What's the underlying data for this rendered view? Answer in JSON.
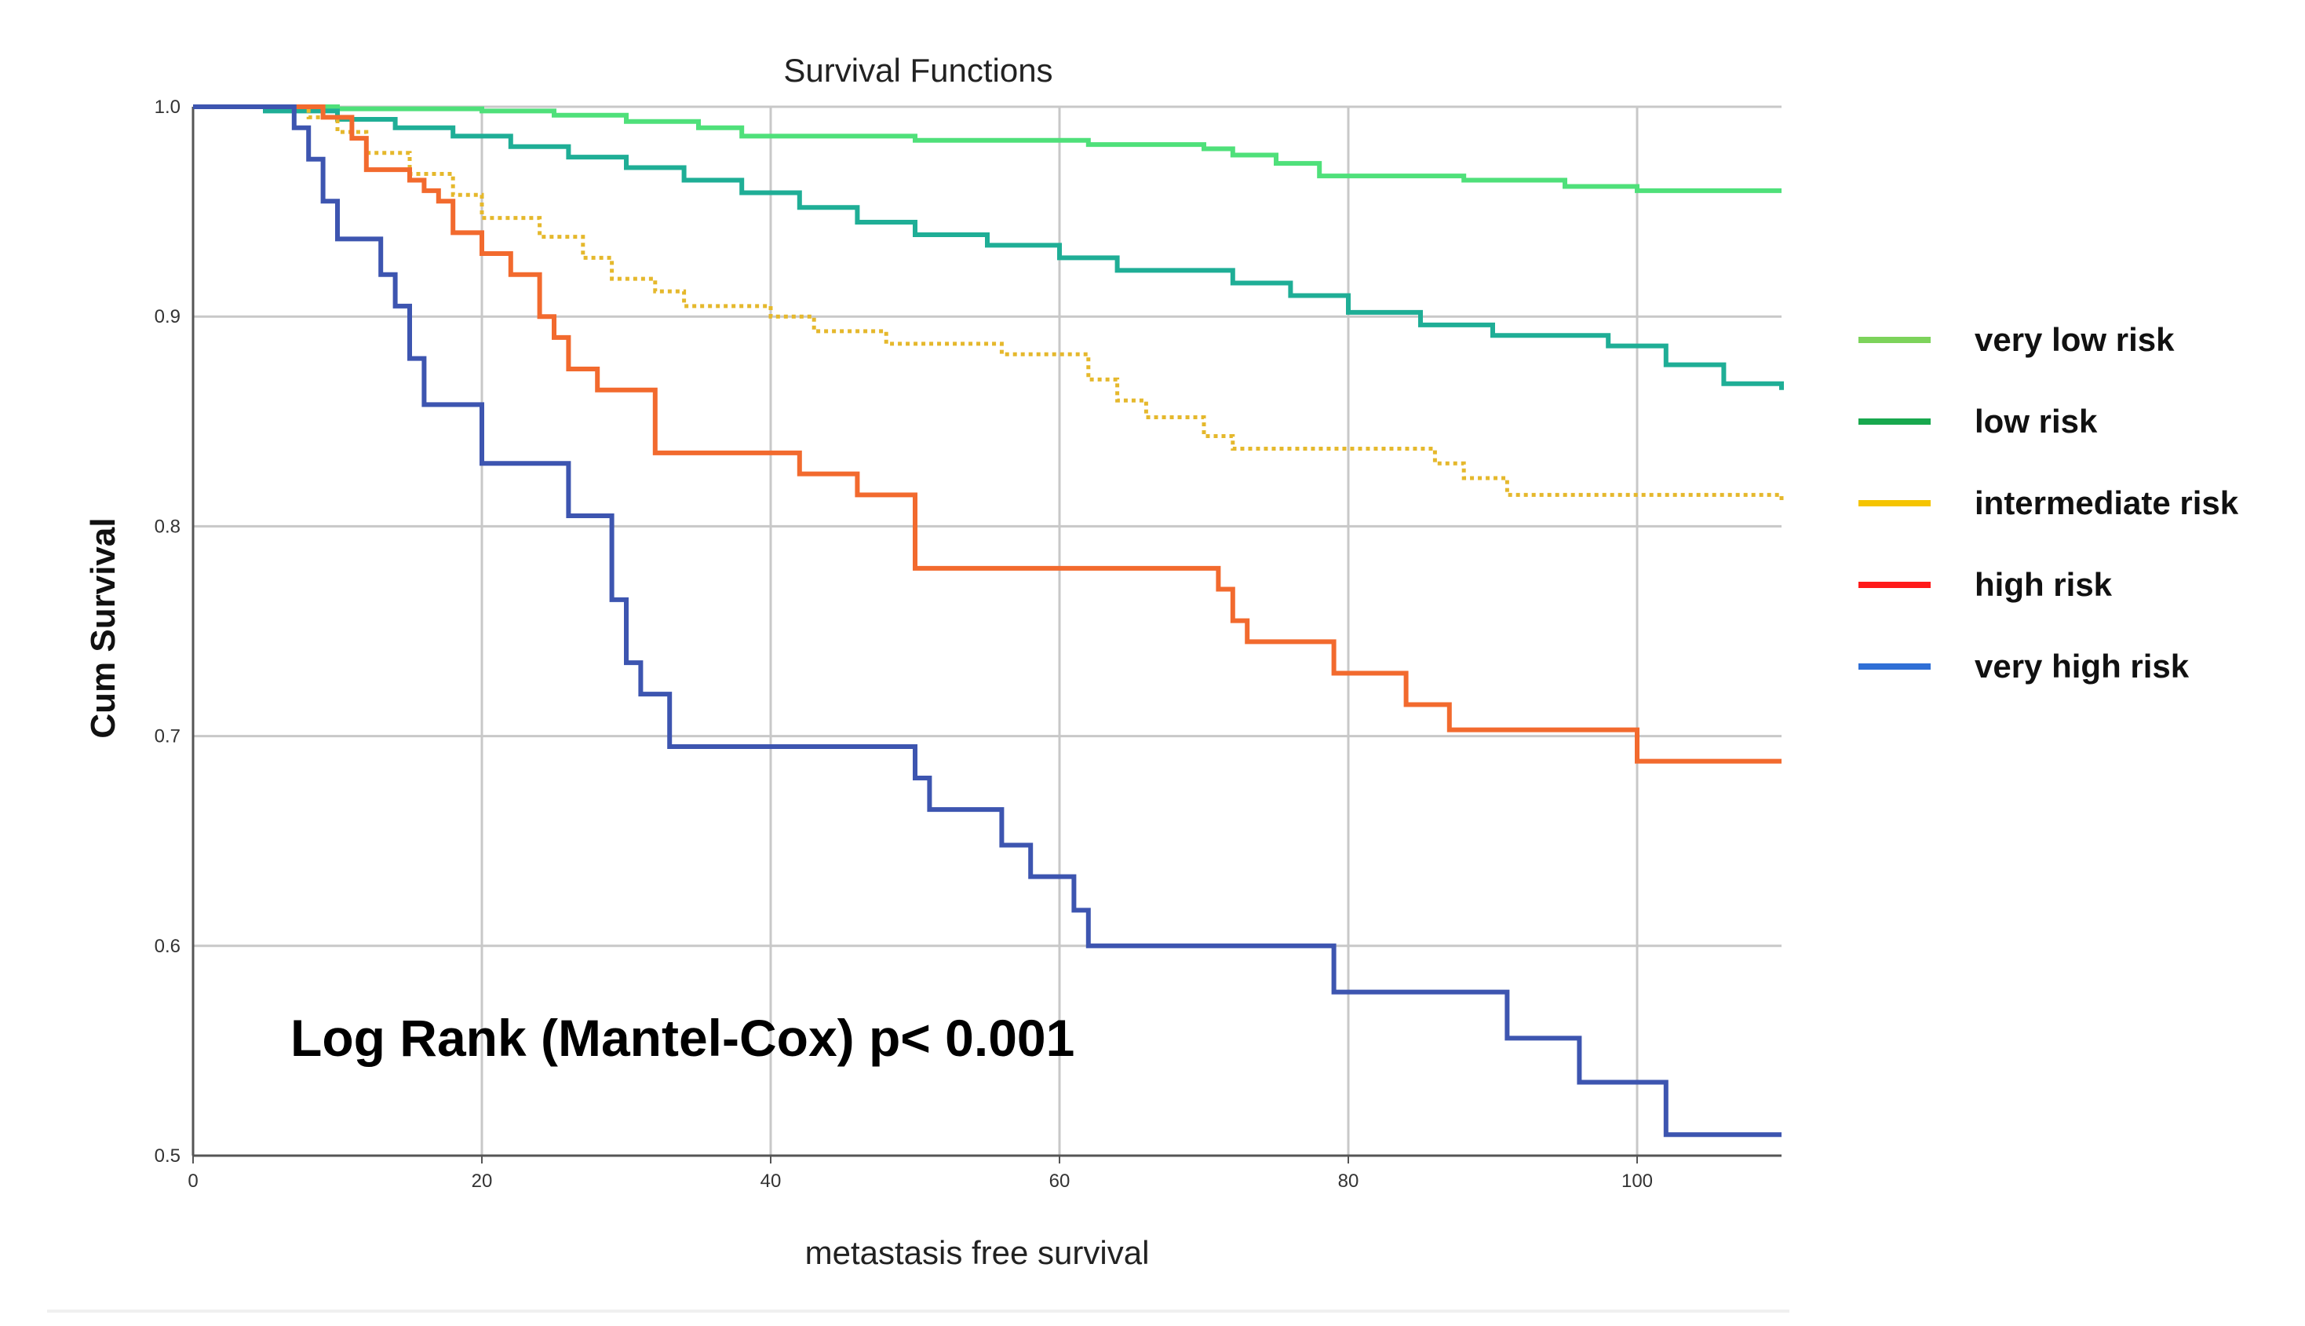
{
  "chart_data": {
    "type": "line",
    "title": "Survival Functions",
    "xlabel": "metastasis free survival",
    "ylabel": "Cum Survival",
    "xlim": [
      0,
      110
    ],
    "ylim": [
      0.5,
      1.0
    ],
    "xticks": [
      0,
      20,
      40,
      60,
      80,
      100
    ],
    "yticks": [
      0.5,
      0.6,
      0.7,
      0.8,
      0.9,
      1.0
    ],
    "xtick_labels": [
      "0",
      "20",
      "40",
      "60",
      "80",
      "100"
    ],
    "ytick_labels": [
      "0.5",
      "0.6",
      "0.7",
      "0.8",
      "0.9",
      "1.0"
    ],
    "grid": true,
    "legend_position": "right",
    "annotation": "Log Rank (Mantel-Cox) p< 0.001",
    "series": [
      {
        "name": "very low risk",
        "legend_color": "#7DD35B",
        "line_color": "#4FE07A",
        "style": "solid",
        "x": [
          0,
          10,
          20,
          25,
          30,
          35,
          38,
          50,
          62,
          70,
          72,
          75,
          78,
          88,
          95,
          100,
          110
        ],
        "y": [
          1.0,
          0.999,
          0.998,
          0.996,
          0.993,
          0.99,
          0.986,
          0.984,
          0.982,
          0.98,
          0.977,
          0.973,
          0.967,
          0.965,
          0.962,
          0.96,
          0.96
        ]
      },
      {
        "name": "low risk",
        "legend_color": "#18A84E",
        "line_color": "#1FAE96",
        "style": "solid",
        "x": [
          0,
          5,
          10,
          14,
          18,
          22,
          26,
          30,
          34,
          38,
          42,
          46,
          50,
          55,
          60,
          64,
          72,
          76,
          80,
          85,
          90,
          98,
          102,
          106,
          110
        ],
        "y": [
          1.0,
          0.998,
          0.994,
          0.99,
          0.986,
          0.981,
          0.976,
          0.971,
          0.965,
          0.959,
          0.952,
          0.945,
          0.939,
          0.934,
          0.928,
          0.922,
          0.916,
          0.91,
          0.902,
          0.896,
          0.891,
          0.886,
          0.877,
          0.868,
          0.865
        ]
      },
      {
        "name": "intermediate risk",
        "legend_color": "#F5C400",
        "line_color": "#E5B82C",
        "style": "dotted",
        "x": [
          0,
          8,
          10,
          12,
          15,
          18,
          20,
          24,
          27,
          29,
          32,
          34,
          40,
          43,
          48,
          56,
          62,
          64,
          66,
          70,
          72,
          86,
          88,
          91,
          110
        ],
        "y": [
          1.0,
          0.995,
          0.988,
          0.978,
          0.968,
          0.958,
          0.947,
          0.938,
          0.928,
          0.918,
          0.912,
          0.905,
          0.9,
          0.893,
          0.887,
          0.882,
          0.87,
          0.86,
          0.852,
          0.843,
          0.837,
          0.83,
          0.823,
          0.815,
          0.811
        ]
      },
      {
        "name": "high risk",
        "legend_color": "#FF1A1A",
        "line_color": "#F26A2E",
        "style": "solid",
        "x": [
          0,
          9,
          11,
          12,
          15,
          16,
          17,
          18,
          20,
          22,
          24,
          25,
          26,
          28,
          32,
          42,
          46,
          50,
          71,
          72,
          73,
          79,
          84,
          87,
          100,
          110
        ],
        "y": [
          1.0,
          0.995,
          0.985,
          0.97,
          0.965,
          0.96,
          0.955,
          0.94,
          0.93,
          0.92,
          0.9,
          0.89,
          0.875,
          0.865,
          0.835,
          0.825,
          0.815,
          0.78,
          0.77,
          0.755,
          0.745,
          0.73,
          0.715,
          0.703,
          0.688,
          0.688
        ]
      },
      {
        "name": "very high risk",
        "legend_color": "#2F6FD6",
        "line_color": "#3D55B0",
        "style": "solid",
        "x": [
          0,
          7,
          8,
          9,
          10,
          13,
          14,
          15,
          16,
          20,
          26,
          29,
          30,
          31,
          33,
          50,
          51,
          52,
          56,
          58,
          61,
          62,
          79,
          91,
          96,
          102,
          110
        ],
        "y": [
          1.0,
          0.99,
          0.975,
          0.955,
          0.937,
          0.92,
          0.905,
          0.88,
          0.858,
          0.83,
          0.805,
          0.765,
          0.735,
          0.72,
          0.695,
          0.68,
          0.665,
          0.665,
          0.648,
          0.633,
          0.617,
          0.6,
          0.578,
          0.556,
          0.535,
          0.51,
          0.51
        ]
      }
    ]
  }
}
